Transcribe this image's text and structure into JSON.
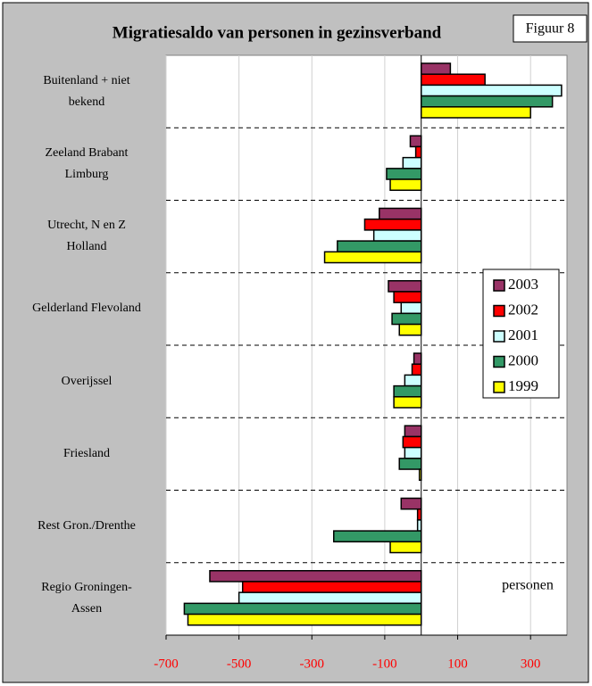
{
  "chart_data": {
    "type": "bar",
    "orientation": "horizontal",
    "title": "Migratiesaldo van personen in gezinsverband",
    "figure_label": "Figuur 8",
    "annotation": "personen",
    "categories": [
      "Buitenland + niet\nbekend",
      "Zeeland Brabant\nLimburg",
      "Utrecht, N en Z\nHolland",
      "Gelderland Flevoland",
      "Overijssel",
      "Friesland",
      "Rest Gron./Drenthe",
      "Regio Groningen-\nAssen"
    ],
    "series": [
      {
        "name": "2003",
        "color": "#993366",
        "values": [
          80,
          -30,
          -115,
          -90,
          -20,
          -45,
          -55,
          -580
        ]
      },
      {
        "name": "2002",
        "color": "#ff0000",
        "values": [
          175,
          -15,
          -155,
          -75,
          -25,
          -50,
          -10,
          -490
        ]
      },
      {
        "name": "2001",
        "color": "#ccffff",
        "values": [
          385,
          -50,
          -130,
          -55,
          -45,
          -45,
          -10,
          -500
        ]
      },
      {
        "name": "2000",
        "color": "#339966",
        "values": [
          360,
          -95,
          -230,
          -80,
          -75,
          -60,
          -240,
          -650
        ]
      },
      {
        "name": "1999",
        "color": "#ffff00",
        "values": [
          300,
          -85,
          -265,
          -60,
          -75,
          -5,
          -85,
          -640
        ]
      }
    ],
    "xlim": [
      -700,
      400
    ],
    "xticks": [
      -700,
      -500,
      -300,
      -100,
      100,
      300
    ],
    "tick_label_color": "#ff0000",
    "legend": "right"
  }
}
